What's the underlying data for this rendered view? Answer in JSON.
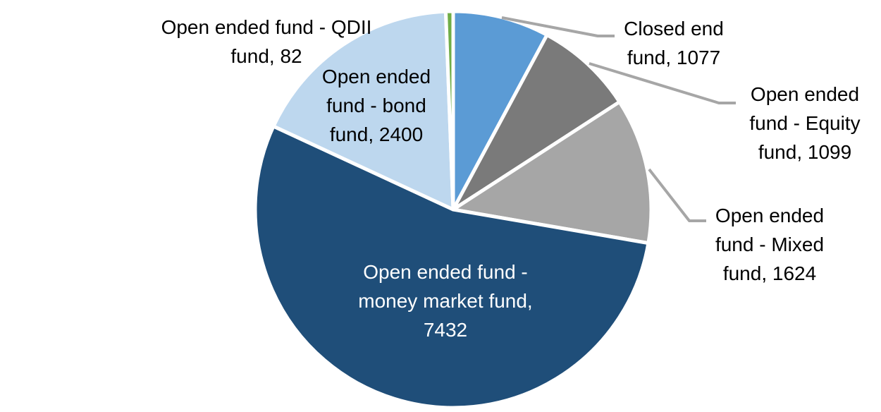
{
  "chart_data": {
    "type": "pie",
    "title": "",
    "legend_position": "none",
    "background_color": "#FFFFFF",
    "slice_border_color": "#FFFFFF",
    "leader_line_color": "#A6A6A6",
    "total": 13714,
    "start_angle_deg": 0,
    "direction": "clockwise",
    "slices": [
      {
        "key": "closed-end-fund",
        "label": "Closed end fund",
        "value": 1077,
        "color": "#5B9BD5",
        "label_placement": "outside"
      },
      {
        "key": "equity-fund",
        "label": "Open ended fund - Equity fund",
        "value": 1099,
        "color": "#7A7A7A",
        "label_placement": "outside"
      },
      {
        "key": "mixed-fund",
        "label": "Open ended fund - Mixed fund",
        "value": 1624,
        "color": "#A6A6A6",
        "label_placement": "outside"
      },
      {
        "key": "money-market-fund",
        "label": "Open ended fund - money market fund",
        "value": 7432,
        "color": "#1F4E79",
        "label_placement": "inside"
      },
      {
        "key": "bond-fund",
        "label": "Open ended fund - bond fund",
        "value": 2400,
        "color": "#BDD7EE",
        "label_placement": "inside"
      },
      {
        "key": "qdii-fund",
        "label": "Open ended fund - QDII fund",
        "value": 82,
        "color": "#70AD47",
        "label_placement": "outside"
      }
    ]
  },
  "labels": {
    "qdii": "Open ended fund - QDII\nfund, 82",
    "bond": "Open ended\nfund - bond\nfund, 2400",
    "closed": "Closed end\nfund, 1077",
    "equity": "Open ended\nfund - Equity\nfund, 1099",
    "mixed": "Open ended\nfund - Mixed\nfund, 1624",
    "money": "Open ended fund -\nmoney market fund,\n7432"
  }
}
